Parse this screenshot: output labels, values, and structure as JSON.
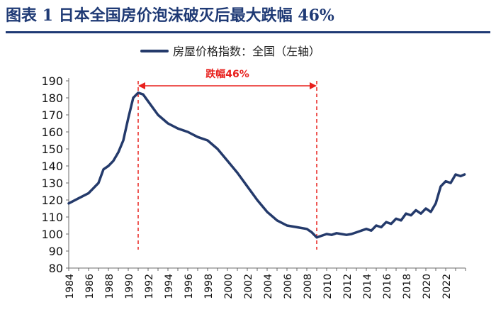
{
  "title": "图表 1  日本全国房价泡沫破灭后最大跌幅 46%",
  "colors": {
    "series": "#243a6b",
    "annotation": "#e8201d",
    "title": "#1f3a75",
    "axis": "#6b6b6b"
  },
  "chart_data": {
    "type": "line",
    "legend_position": "top-center",
    "grid": false,
    "ylim": [
      80,
      190
    ],
    "yticks": [
      80,
      90,
      100,
      110,
      120,
      130,
      140,
      150,
      160,
      170,
      180,
      190
    ],
    "xlim": [
      1984,
      2024
    ],
    "xticks": [
      "1984",
      "1986",
      "1988",
      "1990",
      "1992",
      "1994",
      "1996",
      "1998",
      "2000",
      "2002",
      "2004",
      "2006",
      "2008",
      "2010",
      "2012",
      "2014",
      "2016",
      "2018",
      "2020",
      "2022"
    ],
    "series": [
      {
        "name": "房屋价格指数：全国（左轴）",
        "points": [
          [
            1984,
            118
          ],
          [
            1985,
            121
          ],
          [
            1986,
            124
          ],
          [
            1987,
            130
          ],
          [
            1987.5,
            138
          ],
          [
            1988,
            140
          ],
          [
            1988.5,
            143
          ],
          [
            1989,
            148
          ],
          [
            1989.5,
            155
          ],
          [
            1990,
            168
          ],
          [
            1990.5,
            180
          ],
          [
            1991,
            183
          ],
          [
            1991.5,
            182
          ],
          [
            1992,
            178
          ],
          [
            1993,
            170
          ],
          [
            1994,
            165
          ],
          [
            1995,
            162
          ],
          [
            1996,
            160
          ],
          [
            1997,
            157
          ],
          [
            1998,
            155
          ],
          [
            1999,
            150
          ],
          [
            2000,
            143
          ],
          [
            2001,
            136
          ],
          [
            2002,
            128
          ],
          [
            2003,
            120
          ],
          [
            2004,
            113
          ],
          [
            2005,
            108
          ],
          [
            2006,
            105
          ],
          [
            2007,
            104
          ],
          [
            2008,
            103
          ],
          [
            2008.5,
            101
          ],
          [
            2009,
            98
          ],
          [
            2009.5,
            99
          ],
          [
            2010,
            100
          ],
          [
            2010.5,
            99.5
          ],
          [
            2011,
            100.5
          ],
          [
            2011.5,
            100
          ],
          [
            2012,
            99.5
          ],
          [
            2012.5,
            100
          ],
          [
            2013,
            101
          ],
          [
            2013.5,
            102
          ],
          [
            2014,
            103
          ],
          [
            2014.5,
            102
          ],
          [
            2015,
            105
          ],
          [
            2015.5,
            104
          ],
          [
            2016,
            107
          ],
          [
            2016.5,
            106
          ],
          [
            2017,
            109
          ],
          [
            2017.5,
            108
          ],
          [
            2018,
            112
          ],
          [
            2018.5,
            111
          ],
          [
            2019,
            114
          ],
          [
            2019.5,
            112
          ],
          [
            2020,
            115
          ],
          [
            2020.5,
            113
          ],
          [
            2021,
            118
          ],
          [
            2021.5,
            128
          ],
          [
            2022,
            131
          ],
          [
            2022.5,
            130
          ],
          [
            2023,
            135
          ],
          [
            2023.5,
            134
          ],
          [
            2023.9,
            135
          ]
        ]
      }
    ],
    "annotations": {
      "vlines": [
        1991,
        2009
      ],
      "arrow_label": "跌幅46%"
    }
  }
}
